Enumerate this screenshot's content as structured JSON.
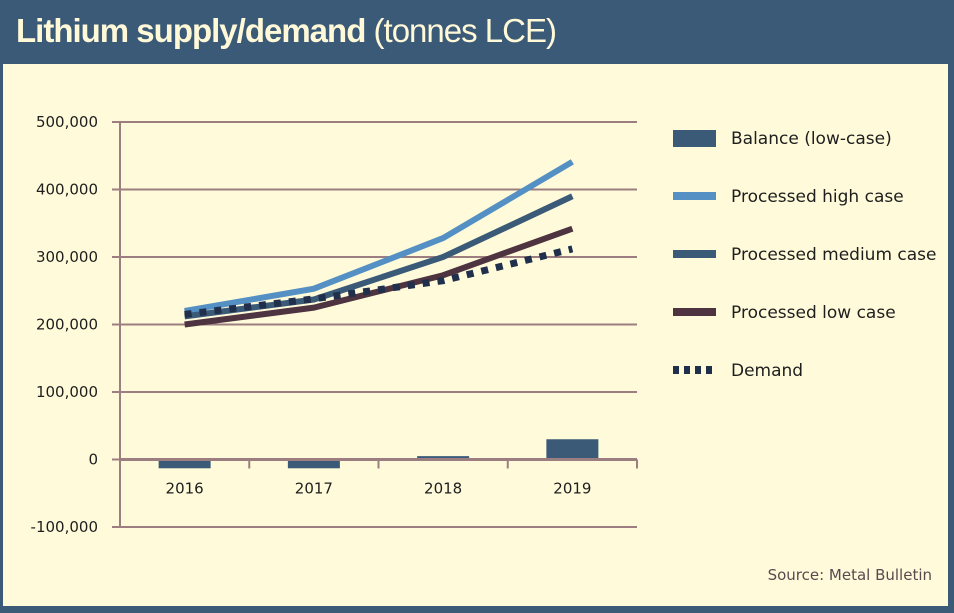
{
  "header": {
    "title_bold": "Lithium supply/demand",
    "title_light": "(tonnes LCE)"
  },
  "source": "Source: Metal Bulletin",
  "colors": {
    "frame": "#3a5a78",
    "background": "#fffbda",
    "grid": "#9c7e80",
    "balance": "#3a5a78",
    "high": "#5590c4",
    "medium": "#3a5a78",
    "low": "#4e3340",
    "demand": "#1f2f4c"
  },
  "chart_data": {
    "type": "line",
    "title": "Lithium supply/demand (tonnes LCE)",
    "xlabel": "",
    "ylabel": "",
    "categories": [
      "2016",
      "2017",
      "2018",
      "2019"
    ],
    "ylim": [
      -100000,
      500000
    ],
    "yticks": [
      500000,
      400000,
      300000,
      200000,
      100000,
      0,
      -100000
    ],
    "ytick_labels": [
      "500,000",
      "400,000",
      "300,000",
      "200,000",
      "100,000",
      "0",
      "-100,000"
    ],
    "grid": true,
    "legend_position": "right",
    "series": [
      {
        "name": "Balance (low-case)",
        "kind": "bar",
        "color": "#3a5a78",
        "values": [
          -13000,
          -13000,
          5000,
          30000
        ]
      },
      {
        "name": "Processed high case",
        "kind": "line",
        "color": "#5590c4",
        "values": [
          220000,
          253000,
          328000,
          441000
        ]
      },
      {
        "name": "Processed medium case",
        "kind": "line",
        "color": "#3a5a78",
        "values": [
          212000,
          237000,
          300000,
          390000
        ]
      },
      {
        "name": "Processed low case",
        "kind": "line",
        "color": "#4e3340",
        "values": [
          200000,
          225000,
          273000,
          342000
        ]
      },
      {
        "name": "Demand",
        "kind": "dotted-line",
        "color": "#1f2f4c",
        "values": [
          215000,
          238000,
          265000,
          312000
        ]
      }
    ]
  }
}
